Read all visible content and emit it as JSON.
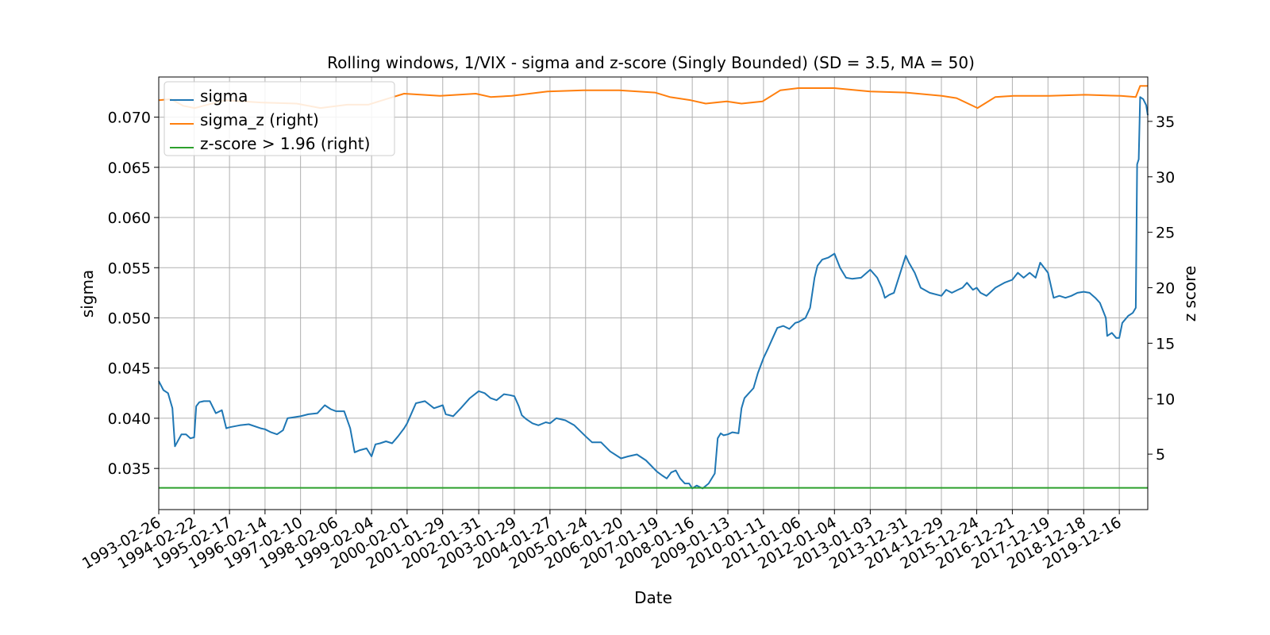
{
  "chart_data": {
    "type": "line",
    "title": "Rolling windows, 1/VIX - sigma and z-score (Singly Bounded) (SD = 3.5, MA = 50)",
    "xlabel": "Date",
    "ylabel": "sigma",
    "ylabel_right": "z score",
    "x_ticks": [
      "1993-02-26",
      "1994-02-22",
      "1995-02-17",
      "1996-02-14",
      "1997-02-10",
      "1998-02-06",
      "1999-02-04",
      "2000-02-01",
      "2001-01-29",
      "2002-01-31",
      "2003-01-29",
      "2004-01-27",
      "2005-01-24",
      "2006-01-20",
      "2007-01-19",
      "2008-01-16",
      "2009-01-13",
      "2010-01-11",
      "2011-01-06",
      "2012-01-04",
      "2013-01-03",
      "2013-12-31",
      "2014-12-29",
      "2015-12-24",
      "2016-12-21",
      "2017-12-19",
      "2018-12-18",
      "2019-12-16"
    ],
    "x_range": [
      "1993-02-26",
      "2020-10-01"
    ],
    "y_left_ticks": [
      0.035,
      0.04,
      0.045,
      0.05,
      0.055,
      0.06,
      0.065,
      0.07
    ],
    "y_left_range": [
      0.0309,
      0.074
    ],
    "y_right_ticks": [
      5,
      10,
      15,
      20,
      25,
      30,
      35
    ],
    "y_right_range": [
      0.0,
      39.0
    ],
    "grid": true,
    "legend_placement": "top-left",
    "series": [
      {
        "name": "sigma",
        "axis": "left",
        "color": "#1f77b4",
        "points": [
          [
            "1993-02-26",
            0.0437
          ],
          [
            "1993-04-15",
            0.0428
          ],
          [
            "1993-06-01",
            0.0425
          ],
          [
            "1993-07-15",
            0.041
          ],
          [
            "1993-08-10",
            0.0372
          ],
          [
            "1993-09-01",
            0.0376
          ],
          [
            "1993-10-15",
            0.0384
          ],
          [
            "1993-12-01",
            0.0384
          ],
          [
            "1994-01-15",
            0.038
          ],
          [
            "1994-02-22",
            0.0381
          ],
          [
            "1994-03-15",
            0.0412
          ],
          [
            "1994-04-15",
            0.0416
          ],
          [
            "1994-06-01",
            0.0417
          ],
          [
            "1994-08-01",
            0.0417
          ],
          [
            "1994-10-01",
            0.0405
          ],
          [
            "1994-12-01",
            0.0408
          ],
          [
            "1995-01-15",
            0.039
          ],
          [
            "1995-02-17",
            0.0391
          ],
          [
            "1995-06-01",
            0.0393
          ],
          [
            "1995-09-01",
            0.0394
          ],
          [
            "1996-01-01",
            0.039
          ],
          [
            "1996-02-14",
            0.0389
          ],
          [
            "1996-04-15",
            0.0386
          ],
          [
            "1996-06-15",
            0.0384
          ],
          [
            "1996-08-15",
            0.0388
          ],
          [
            "1996-10-01",
            0.04
          ],
          [
            "1996-12-01",
            0.0401
          ],
          [
            "1997-02-10",
            0.0402
          ],
          [
            "1997-05-01",
            0.0404
          ],
          [
            "1997-08-01",
            0.0405
          ],
          [
            "1997-10-15",
            0.0413
          ],
          [
            "1997-12-15",
            0.0409
          ],
          [
            "1998-02-06",
            0.0407
          ],
          [
            "1998-05-01",
            0.0407
          ],
          [
            "1998-07-01",
            0.039
          ],
          [
            "1998-08-15",
            0.0366
          ],
          [
            "1998-10-01",
            0.0368
          ],
          [
            "1998-12-15",
            0.037
          ],
          [
            "1999-02-04",
            0.0362
          ],
          [
            "1999-03-15",
            0.0374
          ],
          [
            "1999-05-01",
            0.0375
          ],
          [
            "1999-07-01",
            0.0377
          ],
          [
            "1999-09-01",
            0.0375
          ],
          [
            "1999-11-01",
            0.0382
          ],
          [
            "2000-01-01",
            0.039
          ],
          [
            "2000-02-01",
            0.0395
          ],
          [
            "2000-05-01",
            0.0415
          ],
          [
            "2000-08-01",
            0.0417
          ],
          [
            "2000-11-01",
            0.041
          ],
          [
            "2001-01-29",
            0.0413
          ],
          [
            "2001-03-01",
            0.0404
          ],
          [
            "2001-05-15",
            0.0402
          ],
          [
            "2001-08-01",
            0.041
          ],
          [
            "2001-11-01",
            0.042
          ],
          [
            "2002-01-31",
            0.0427
          ],
          [
            "2002-04-01",
            0.0425
          ],
          [
            "2002-06-01",
            0.042
          ],
          [
            "2002-08-01",
            0.0418
          ],
          [
            "2002-10-15",
            0.0424
          ],
          [
            "2002-12-15",
            0.0423
          ],
          [
            "2003-01-29",
            0.0422
          ],
          [
            "2003-03-15",
            0.0412
          ],
          [
            "2003-04-15",
            0.0403
          ],
          [
            "2003-06-01",
            0.0399
          ],
          [
            "2003-08-01",
            0.0395
          ],
          [
            "2003-10-01",
            0.0393
          ],
          [
            "2003-12-15",
            0.0396
          ],
          [
            "2004-01-27",
            0.0395
          ],
          [
            "2004-04-01",
            0.04
          ],
          [
            "2004-07-01",
            0.0398
          ],
          [
            "2004-10-01",
            0.0393
          ],
          [
            "2005-01-24",
            0.0382
          ],
          [
            "2005-04-01",
            0.0376
          ],
          [
            "2005-07-01",
            0.0376
          ],
          [
            "2005-10-01",
            0.0367
          ],
          [
            "2006-01-20",
            0.036
          ],
          [
            "2006-04-01",
            0.0362
          ],
          [
            "2006-07-01",
            0.0364
          ],
          [
            "2006-10-01",
            0.0358
          ],
          [
            "2007-01-19",
            0.0347
          ],
          [
            "2007-03-15",
            0.0343
          ],
          [
            "2007-05-01",
            0.034
          ],
          [
            "2007-06-15",
            0.0346
          ],
          [
            "2007-08-01",
            0.0348
          ],
          [
            "2007-09-15",
            0.034
          ],
          [
            "2007-11-01",
            0.0335
          ],
          [
            "2007-12-15",
            0.0335
          ],
          [
            "2008-01-16",
            0.033
          ],
          [
            "2008-03-01",
            0.0333
          ],
          [
            "2008-05-01",
            0.033
          ],
          [
            "2008-07-01",
            0.0335
          ],
          [
            "2008-09-01",
            0.0345
          ],
          [
            "2008-10-01",
            0.038
          ],
          [
            "2008-11-01",
            0.0385
          ],
          [
            "2008-12-01",
            0.0383
          ],
          [
            "2009-01-13",
            0.0384
          ],
          [
            "2009-03-01",
            0.0386
          ],
          [
            "2009-05-01",
            0.0385
          ],
          [
            "2009-06-01",
            0.041
          ],
          [
            "2009-07-01",
            0.042
          ],
          [
            "2009-08-15",
            0.0425
          ],
          [
            "2009-10-01",
            0.043
          ],
          [
            "2009-11-15",
            0.0445
          ],
          [
            "2010-01-11",
            0.046
          ],
          [
            "2010-03-01",
            0.047
          ],
          [
            "2010-04-15",
            0.048
          ],
          [
            "2010-06-01",
            0.049
          ],
          [
            "2010-08-01",
            0.0492
          ],
          [
            "2010-10-01",
            0.0489
          ],
          [
            "2010-12-01",
            0.0495
          ],
          [
            "2011-01-06",
            0.0496
          ],
          [
            "2011-03-15",
            0.05
          ],
          [
            "2011-05-01",
            0.051
          ],
          [
            "2011-06-15",
            0.054
          ],
          [
            "2011-07-15",
            0.0552
          ],
          [
            "2011-09-01",
            0.0558
          ],
          [
            "2011-11-01",
            0.056
          ],
          [
            "2012-01-04",
            0.0564
          ],
          [
            "2012-03-01",
            0.055
          ],
          [
            "2012-05-01",
            0.054
          ],
          [
            "2012-07-01",
            0.0539
          ],
          [
            "2012-10-01",
            0.054
          ],
          [
            "2013-01-03",
            0.0548
          ],
          [
            "2013-03-15",
            0.054
          ],
          [
            "2013-05-01",
            0.053
          ],
          [
            "2013-06-01",
            0.052
          ],
          [
            "2013-07-15",
            0.0523
          ],
          [
            "2013-09-01",
            0.0525
          ],
          [
            "2013-12-31",
            0.0562
          ],
          [
            "2014-02-01",
            0.0555
          ],
          [
            "2014-04-01",
            0.0545
          ],
          [
            "2014-06-01",
            0.053
          ],
          [
            "2014-09-01",
            0.0525
          ],
          [
            "2014-12-29",
            0.0522
          ],
          [
            "2015-02-15",
            0.0528
          ],
          [
            "2015-04-15",
            0.0525
          ],
          [
            "2015-06-15",
            0.0528
          ],
          [
            "2015-08-01",
            0.053
          ],
          [
            "2015-09-15",
            0.0535
          ],
          [
            "2015-11-15",
            0.0528
          ],
          [
            "2015-12-24",
            0.053
          ],
          [
            "2016-02-01",
            0.0525
          ],
          [
            "2016-04-01",
            0.0522
          ],
          [
            "2016-07-01",
            0.053
          ],
          [
            "2016-10-01",
            0.0535
          ],
          [
            "2016-12-21",
            0.0538
          ],
          [
            "2017-02-15",
            0.0545
          ],
          [
            "2017-04-15",
            0.054
          ],
          [
            "2017-06-15",
            0.0545
          ],
          [
            "2017-08-15",
            0.054
          ],
          [
            "2017-10-01",
            0.0555
          ],
          [
            "2017-12-19",
            0.0545
          ],
          [
            "2018-02-15",
            0.052
          ],
          [
            "2018-04-15",
            0.0522
          ],
          [
            "2018-06-15",
            0.052
          ],
          [
            "2018-08-15",
            0.0522
          ],
          [
            "2018-10-15",
            0.0525
          ],
          [
            "2018-12-18",
            0.0526
          ],
          [
            "2019-02-15",
            0.0525
          ],
          [
            "2019-04-15",
            0.052
          ],
          [
            "2019-06-01",
            0.0515
          ],
          [
            "2019-08-01",
            0.05
          ],
          [
            "2019-08-15",
            0.0482
          ],
          [
            "2019-10-01",
            0.0485
          ],
          [
            "2019-11-15",
            0.048
          ],
          [
            "2019-12-16",
            0.048
          ],
          [
            "2020-01-15",
            0.0495
          ],
          [
            "2020-03-15",
            0.0502
          ],
          [
            "2020-05-01",
            0.0505
          ],
          [
            "2020-06-01",
            0.051
          ],
          [
            "2020-06-15",
            0.0653
          ],
          [
            "2020-07-01",
            0.0658
          ],
          [
            "2020-07-15",
            0.072
          ],
          [
            "2020-08-15",
            0.0718
          ],
          [
            "2020-09-15",
            0.0712
          ],
          [
            "2020-10-01",
            0.0702
          ]
        ]
      },
      {
        "name": "sigma_z (right)",
        "axis": "right",
        "color": "#ff7f0e",
        "points": [
          [
            "1993-02-26",
            36.9
          ],
          [
            "1993-07-01",
            37.0
          ],
          [
            "1993-11-01",
            36.4
          ],
          [
            "1994-03-01",
            36.2
          ],
          [
            "1995-01-01",
            36.9
          ],
          [
            "1996-01-01",
            36.7
          ],
          [
            "1997-01-01",
            36.6
          ],
          [
            "1997-09-01",
            36.2
          ],
          [
            "1998-06-01",
            36.5
          ],
          [
            "1999-01-01",
            36.5
          ],
          [
            "1999-07-01",
            37.0
          ],
          [
            "2000-01-01",
            37.5
          ],
          [
            "2001-01-01",
            37.3
          ],
          [
            "2002-01-01",
            37.5
          ],
          [
            "2002-06-01",
            37.2
          ],
          [
            "2003-01-01",
            37.3
          ],
          [
            "2004-01-01",
            37.7
          ],
          [
            "2005-01-01",
            37.8
          ],
          [
            "2006-01-01",
            37.8
          ],
          [
            "2007-01-01",
            37.6
          ],
          [
            "2007-06-01",
            37.2
          ],
          [
            "2008-01-01",
            36.9
          ],
          [
            "2008-06-01",
            36.6
          ],
          [
            "2009-01-01",
            36.8
          ],
          [
            "2009-06-01",
            36.6
          ],
          [
            "2010-01-01",
            36.8
          ],
          [
            "2010-07-01",
            37.8
          ],
          [
            "2011-01-01",
            38.0
          ],
          [
            "2012-01-01",
            38.0
          ],
          [
            "2013-01-01",
            37.7
          ],
          [
            "2014-01-01",
            37.6
          ],
          [
            "2015-01-01",
            37.3
          ],
          [
            "2015-06-01",
            37.1
          ],
          [
            "2016-01-01",
            36.2
          ],
          [
            "2016-07-01",
            37.2
          ],
          [
            "2017-01-01",
            37.3
          ],
          [
            "2018-01-01",
            37.3
          ],
          [
            "2019-01-01",
            37.4
          ],
          [
            "2020-01-01",
            37.3
          ],
          [
            "2020-06-01",
            37.2
          ],
          [
            "2020-07-15",
            38.2
          ],
          [
            "2020-10-01",
            38.2
          ]
        ]
      },
      {
        "name": "z-score > 1.96 (right)",
        "axis": "right",
        "color": "#2ca02c",
        "points": [
          [
            "1993-02-26",
            1.96
          ],
          [
            "2020-10-01",
            1.96
          ]
        ]
      }
    ]
  }
}
